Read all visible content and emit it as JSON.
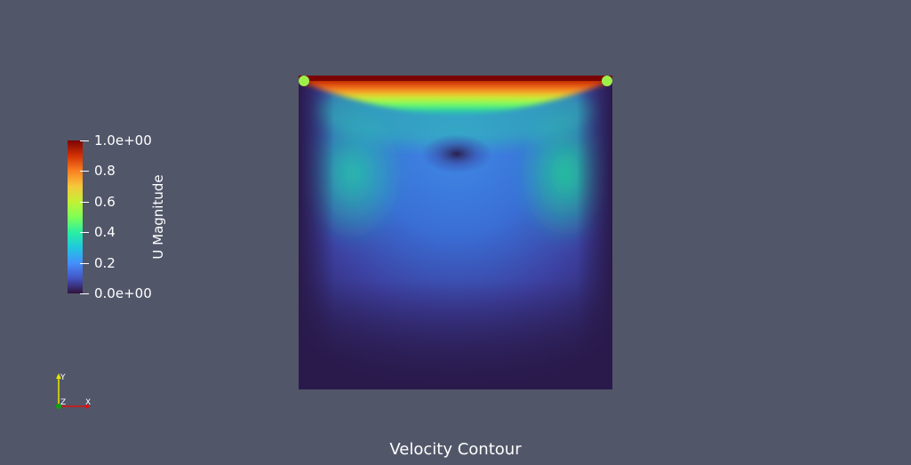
{
  "caption": "Velocity Contour",
  "colorbar": {
    "title": "U Magnitude",
    "ticks": [
      {
        "value": 1.0,
        "label": "1.0e+00"
      },
      {
        "value": 0.8,
        "label": "0.8"
      },
      {
        "value": 0.6,
        "label": "0.6"
      },
      {
        "value": 0.4,
        "label": "0.4"
      },
      {
        "value": 0.2,
        "label": "0.2"
      },
      {
        "value": 0.0,
        "label": "0.0e+00"
      }
    ],
    "range": [
      0.0,
      1.0
    ]
  },
  "axes_triad": {
    "y_label": "Y",
    "z_label": "Z",
    "x_label": "X",
    "y_color": "#e8e800",
    "x_color": "#e01010",
    "z_color": "#10a010"
  },
  "colors": {
    "background": "#525669",
    "cold": "#30123b",
    "hot": "#7a0403"
  }
}
